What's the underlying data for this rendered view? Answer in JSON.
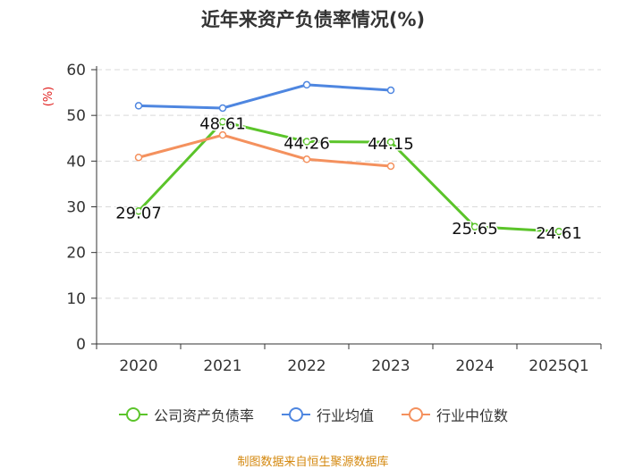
{
  "page": {
    "title": "近年来资产负债率情况(%)",
    "footer": "制图数据来自恒生聚源数据库"
  },
  "chart_data": {
    "type": "line",
    "title": "近年来资产负债率情况(%)",
    "ylabel": "(%)",
    "xlabel": "",
    "categories": [
      "2020",
      "2021",
      "2022",
      "2023",
      "2024",
      "2025Q1"
    ],
    "ylim": [
      0,
      60
    ],
    "yticks": [
      0,
      10,
      20,
      30,
      40,
      50,
      60
    ],
    "grid": true,
    "legend_position": "bottom",
    "series": [
      {
        "name": "公司资产负债率",
        "color": "#5bc42a",
        "values": [
          29.07,
          48.61,
          44.26,
          44.15,
          25.65,
          24.61
        ],
        "show_labels": true
      },
      {
        "name": "行业均值",
        "color": "#4e86e0",
        "values": [
          52.1,
          51.6,
          56.7,
          55.5,
          null,
          null
        ],
        "show_labels": false
      },
      {
        "name": "行业中位数",
        "color": "#f4915e",
        "values": [
          40.8,
          45.7,
          40.4,
          38.9,
          null,
          null
        ],
        "show_labels": false
      }
    ]
  }
}
